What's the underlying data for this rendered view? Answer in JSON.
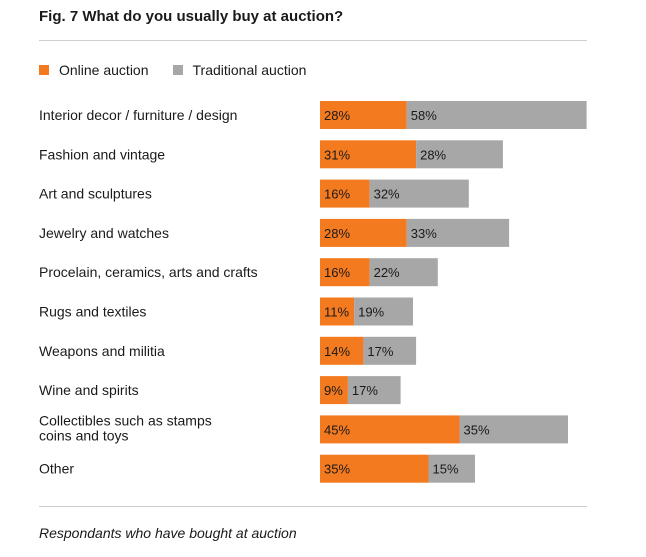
{
  "title": "Fig. 7 What do you usually buy at auction?",
  "footnote": "Respondants who have bought at auction",
  "colors": {
    "online": "#f47a20",
    "traditional": "#a7a7a7"
  },
  "chart_data": {
    "type": "bar",
    "orientation": "horizontal",
    "stacked": true,
    "title": "Fig. 7 What do you usually buy at auction?",
    "categories": [
      "Interior decor / furniture / design",
      "Fashion and vintage",
      "Art and sculptures",
      "Jewelry and watches",
      "Procelain, ceramics, arts and crafts",
      "Rugs and textiles",
      "Weapons and militia",
      "Wine and spirits",
      "Collectibles such as stamps\ncoins and toys",
      "Other"
    ],
    "series": [
      {
        "name": "Online auction",
        "values": [
          28,
          31,
          16,
          28,
          16,
          11,
          14,
          9,
          45,
          35
        ]
      },
      {
        "name": "Traditional auction",
        "values": [
          58,
          28,
          32,
          33,
          22,
          19,
          17,
          17,
          35,
          15
        ]
      }
    ],
    "value_suffix": "%",
    "legend_position": "top-left",
    "grid": false
  }
}
